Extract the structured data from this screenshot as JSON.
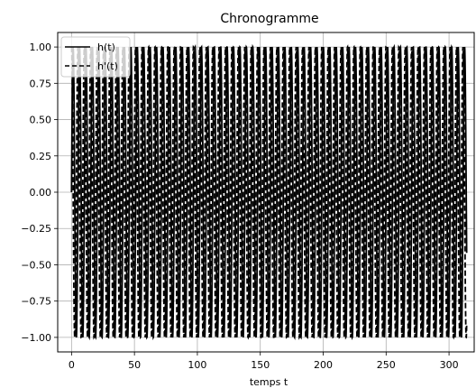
{
  "chart_data": {
    "type": "line",
    "title": "Chronogramme",
    "xlabel": "temps t",
    "ylabel": "",
    "xlim": [
      -11,
      320
    ],
    "ylim": [
      -1.1,
      1.1
    ],
    "xticks": [
      0,
      50,
      100,
      150,
      200,
      250,
      300
    ],
    "yticks": [
      -1.0,
      -0.75,
      -0.5,
      -0.25,
      0.0,
      0.25,
      0.5,
      0.75,
      1.0
    ],
    "ytick_labels": [
      "−1.00",
      "−0.75",
      "−0.50",
      "−0.25",
      "0.00",
      "0.25",
      "0.50",
      "0.75",
      "1.00"
    ],
    "xtick_labels": [
      "0",
      "50",
      "100",
      "150",
      "200",
      "250",
      "300"
    ],
    "grid": true,
    "legend": "top-left",
    "series": [
      {
        "name": "h(t)",
        "style": "solid",
        "color": "#000000",
        "function": "sin",
        "t_start": 0,
        "t_end": 314,
        "period": 5.1
      },
      {
        "name": "h'(t)",
        "style": "dashed",
        "color": "#000000",
        "function": "cos",
        "t_start": 0,
        "t_end": 314,
        "period": 5.1
      }
    ]
  }
}
